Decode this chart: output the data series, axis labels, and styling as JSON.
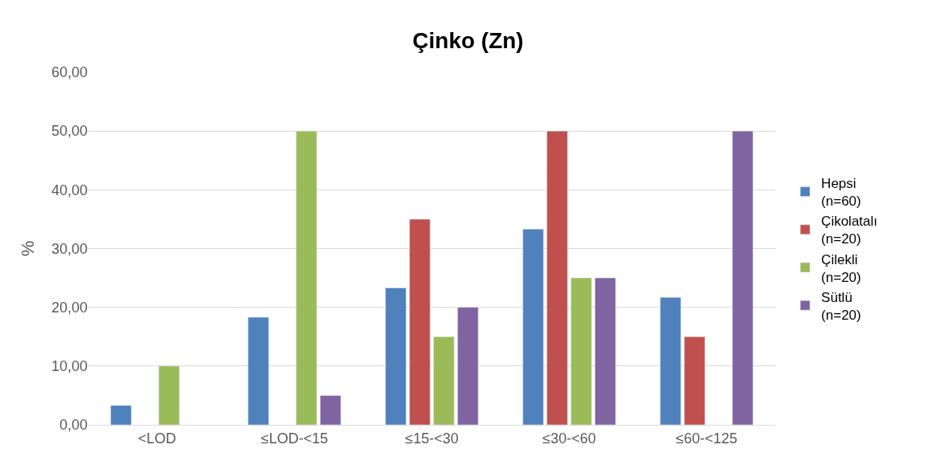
{
  "chart_data": {
    "type": "bar",
    "title": "Çinko (Zn)",
    "ylabel": "%",
    "categories": [
      "<LOD",
      "≤LOD-<15",
      "≤15-<30",
      "≤30-<60",
      "≤60-<125"
    ],
    "series": [
      {
        "name": "Hepsi\n(n=60)",
        "color": "#4f81bd",
        "values": [
          3.3,
          18.3,
          23.3,
          33.3,
          21.7
        ]
      },
      {
        "name": "Çikolatalı\n(n=20)",
        "color": "#c0504d",
        "values": [
          null,
          null,
          35,
          50,
          15
        ]
      },
      {
        "name": "Çilekli\n(n=20)",
        "color": "#9bbb59",
        "values": [
          10,
          50,
          15,
          25,
          null
        ]
      },
      {
        "name": "Sütlü\n(n=20)",
        "color": "#8064a2",
        "values": [
          null,
          5,
          20,
          25,
          50
        ]
      }
    ],
    "ylim": [
      0,
      60
    ],
    "yticks": [
      {
        "value": 0,
        "label": "0,00"
      },
      {
        "value": 10,
        "label": "10,00"
      },
      {
        "value": 20,
        "label": "20,00"
      },
      {
        "value": 30,
        "label": "30,00"
      },
      {
        "value": 40,
        "label": "40,00"
      },
      {
        "value": 50,
        "label": "50,00"
      },
      {
        "value": 60,
        "label": "60,00"
      }
    ],
    "grid": "y",
    "legend": "right"
  }
}
